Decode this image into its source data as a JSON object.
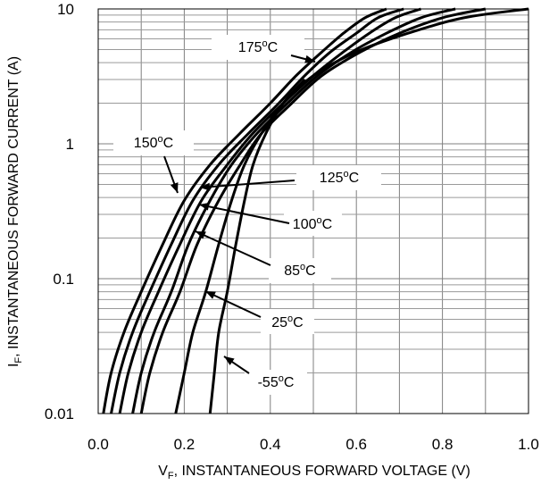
{
  "chart_data": {
    "type": "line",
    "title": "",
    "xlabel": {
      "prefix": "V",
      "sub": "F",
      "rest": ", INSTANTANEOUS FORWARD VOLTAGE (V)"
    },
    "ylabel": {
      "prefix": "I",
      "sub": "F",
      "rest": ", INSTANTANEOUS FORWARD CURRENT (A)"
    },
    "xlim": [
      0,
      1.0
    ],
    "ylim": [
      0.01,
      10
    ],
    "yscale": "log",
    "grid": true,
    "x_ticks": [
      "0.0",
      "0.2",
      "0.4",
      "0.6",
      "0.8",
      "1.0"
    ],
    "y_ticks": [
      "0.01",
      "0.1",
      "1",
      "10"
    ],
    "series": [
      {
        "name": "175°C",
        "label": {
          "num": "175",
          "sup": "o",
          "unit": "C"
        },
        "x": [
          0.012,
          0.03,
          0.06,
          0.1,
          0.15,
          0.2,
          0.26,
          0.33,
          0.4,
          0.46,
          0.52,
          0.57,
          0.62,
          0.67
        ],
        "y": [
          0.01,
          0.02,
          0.04,
          0.08,
          0.18,
          0.38,
          0.7,
          1.2,
          2.0,
          3.2,
          4.8,
          6.6,
          8.6,
          10
        ]
      },
      {
        "name": "150°C",
        "label": {
          "num": "150",
          "sup": "o",
          "unit": "C"
        },
        "x": [
          0.03,
          0.05,
          0.08,
          0.12,
          0.17,
          0.22,
          0.28,
          0.35,
          0.42,
          0.48,
          0.54,
          0.6,
          0.65,
          0.71
        ],
        "y": [
          0.01,
          0.02,
          0.04,
          0.08,
          0.18,
          0.38,
          0.7,
          1.2,
          2.0,
          3.2,
          4.8,
          6.6,
          8.6,
          10
        ]
      },
      {
        "name": "125°C",
        "label": {
          "num": "125",
          "sup": "o",
          "unit": "C"
        },
        "x": [
          0.05,
          0.07,
          0.1,
          0.14,
          0.19,
          0.24,
          0.3,
          0.36,
          0.43,
          0.5,
          0.57,
          0.63,
          0.69,
          0.75
        ],
        "y": [
          0.01,
          0.02,
          0.04,
          0.08,
          0.18,
          0.38,
          0.7,
          1.2,
          2.0,
          3.2,
          4.8,
          6.6,
          8.6,
          10
        ]
      },
      {
        "name": "100°C",
        "label": {
          "num": "100",
          "sup": "o",
          "unit": "C"
        },
        "x": [
          0.08,
          0.1,
          0.13,
          0.17,
          0.21,
          0.26,
          0.31,
          0.37,
          0.44,
          0.51,
          0.59,
          0.67,
          0.75,
          0.83
        ],
        "y": [
          0.01,
          0.02,
          0.04,
          0.08,
          0.18,
          0.38,
          0.7,
          1.2,
          2.0,
          3.2,
          4.8,
          6.6,
          8.6,
          10
        ]
      },
      {
        "name": "85°C",
        "label": {
          "num": "85",
          "sup": "o",
          "unit": "C"
        },
        "x": [
          0.1,
          0.12,
          0.15,
          0.19,
          0.23,
          0.28,
          0.33,
          0.38,
          0.45,
          0.52,
          0.61,
          0.7,
          0.8,
          0.9
        ],
        "y": [
          0.01,
          0.02,
          0.04,
          0.08,
          0.18,
          0.38,
          0.7,
          1.2,
          2.0,
          3.2,
          4.8,
          6.6,
          8.6,
          10
        ]
      },
      {
        "name": "25°C",
        "label": {
          "num": "25",
          "sup": "o",
          "unit": "C"
        },
        "x": [
          0.18,
          0.2,
          0.22,
          0.25,
          0.28,
          0.31,
          0.34,
          0.38,
          0.43,
          0.5,
          0.6,
          0.72,
          0.85,
          1.0
        ],
        "y": [
          0.01,
          0.02,
          0.04,
          0.08,
          0.18,
          0.38,
          0.7,
          1.2,
          2.0,
          3.2,
          4.8,
          6.6,
          8.6,
          10
        ]
      },
      {
        "name": "-55°C",
        "label": {
          "num": "-55",
          "sup": "o",
          "unit": "C"
        },
        "x": [
          0.26,
          0.27,
          0.28,
          0.3,
          0.32,
          0.34,
          0.36,
          0.39,
          0.43,
          0.48
        ],
        "y": [
          0.01,
          0.02,
          0.04,
          0.08,
          0.18,
          0.38,
          0.7,
          1.2,
          2.0,
          3.0
        ]
      }
    ]
  }
}
